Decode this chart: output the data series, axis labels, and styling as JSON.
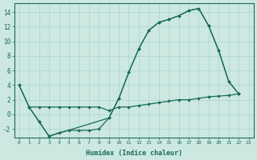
{
  "xlabel": "Humidex (Indice chaleur)",
  "bg_color": "#cce8e0",
  "grid_color": "#aad4cc",
  "line_color": "#1a6b5a",
  "xlim": [
    -0.5,
    23.5
  ],
  "ylim": [
    -3.2,
    15.2
  ],
  "xticks": [
    0,
    1,
    2,
    3,
    4,
    5,
    6,
    7,
    8,
    9,
    10,
    11,
    12,
    13,
    14,
    15,
    16,
    17,
    18,
    19,
    20,
    21,
    22,
    23
  ],
  "yticks": [
    -2,
    0,
    2,
    4,
    6,
    8,
    10,
    12,
    14
  ],
  "line1_x": [
    0,
    1,
    2,
    3,
    9,
    10,
    11,
    12,
    13,
    14,
    15,
    16,
    17,
    18,
    19,
    20,
    21,
    22
  ],
  "line1_y": [
    4,
    1,
    -1,
    -3,
    -0.5,
    2.2,
    5.8,
    9.0,
    11.5,
    12.6,
    13.0,
    13.5,
    14.2,
    14.5,
    12.1,
    8.7,
    4.5,
    2.8
  ],
  "line2_x": [
    0,
    1,
    2,
    3,
    4,
    5,
    6,
    7,
    8,
    9,
    10,
    11,
    12,
    13,
    14,
    15,
    16,
    17,
    18,
    19,
    20,
    21,
    22
  ],
  "line2_y": [
    4,
    1,
    -1,
    -3,
    -2.5,
    -2.2,
    -2.2,
    -2.2,
    -2.0,
    -0.5,
    2.2,
    5.8,
    9.0,
    11.5,
    12.6,
    13.0,
    13.5,
    14.2,
    14.5,
    12.1,
    8.7,
    4.5,
    2.8
  ],
  "line3_x": [
    1,
    2,
    3,
    4,
    5,
    6,
    7,
    8,
    9,
    10,
    11,
    12,
    13,
    14,
    15,
    16,
    17,
    18,
    19,
    20,
    21,
    22
  ],
  "line3_y": [
    1.0,
    1.0,
    1.0,
    1.0,
    1.0,
    1.0,
    1.0,
    1.0,
    0.5,
    1.0,
    1.0,
    1.2,
    1.4,
    1.6,
    1.8,
    2.0,
    2.0,
    2.2,
    2.4,
    2.5,
    2.6,
    2.8
  ]
}
